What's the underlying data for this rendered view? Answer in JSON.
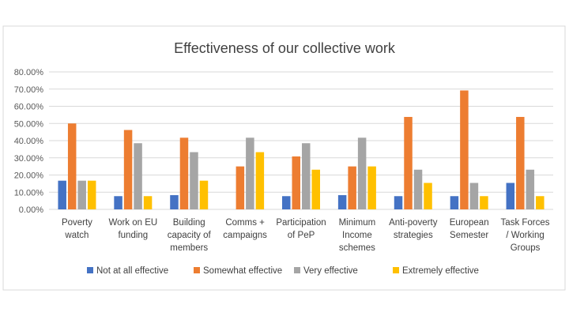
{
  "chart_data": {
    "type": "bar",
    "title": "Effectiveness of our collective work",
    "xlabel": "",
    "ylabel": "",
    "ylim": [
      0,
      80
    ],
    "ytick_labels": [
      "0.00%",
      "10.00%",
      "20.00%",
      "30.00%",
      "40.00%",
      "50.00%",
      "60.00%",
      "70.00%",
      "80.00%"
    ],
    "grid": true,
    "legend_position": "bottom",
    "categories": [
      "Poverty watch",
      "Work on EU funding",
      "Building capacity of members",
      "Comms + campaigns",
      "Participation of PeP",
      "Minimum Income schemes",
      "Anti-poverty strategies",
      "European Semester",
      "Task Forces / Working Groups"
    ],
    "category_lines": [
      [
        "Poverty",
        "watch"
      ],
      [
        "Work on EU",
        "funding"
      ],
      [
        "Building",
        "capacity of",
        "members"
      ],
      [
        "Comms +",
        "campaigns"
      ],
      [
        "Participation",
        "of PeP"
      ],
      [
        "Minimum",
        "Income",
        "schemes"
      ],
      [
        "Anti-poverty",
        "strategies"
      ],
      [
        "European",
        "Semester"
      ],
      [
        "Task Forces",
        "/ Working",
        "Groups"
      ]
    ],
    "series": [
      {
        "name": "Not at all effective",
        "color": "#4472C4",
        "values": [
          16.7,
          7.7,
          8.3,
          0,
          7.7,
          8.3,
          7.7,
          7.7,
          15.4
        ]
      },
      {
        "name": "Somewhat effective",
        "color": "#ED7D31",
        "values": [
          50.0,
          46.2,
          41.7,
          25.0,
          30.8,
          25.0,
          53.8,
          69.2,
          53.8
        ]
      },
      {
        "name": "Very effective",
        "color": "#A5A5A5",
        "values": [
          16.7,
          38.5,
          33.3,
          41.7,
          38.5,
          41.7,
          23.1,
          15.4,
          23.1
        ]
      },
      {
        "name": "Extremely effective",
        "color": "#FFC000",
        "values": [
          16.7,
          7.7,
          16.7,
          33.3,
          23.1,
          25.0,
          15.4,
          7.7,
          7.7
        ]
      }
    ]
  }
}
